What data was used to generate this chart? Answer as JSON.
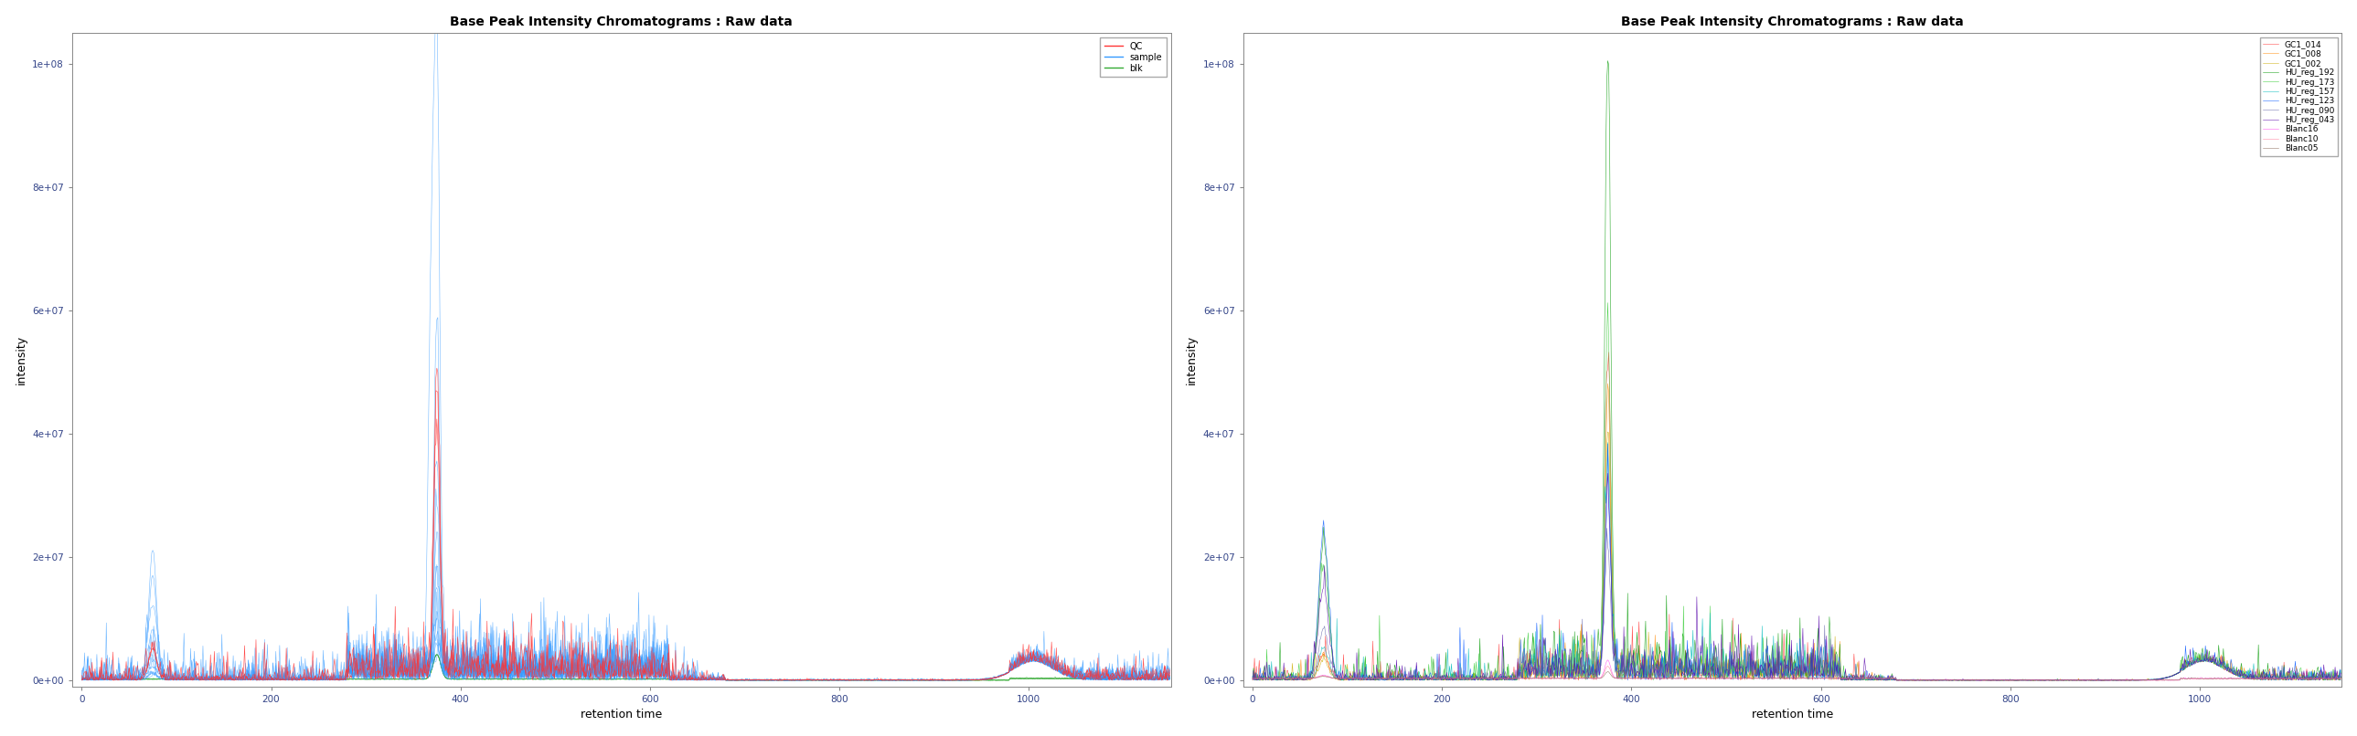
{
  "title": "Base Peak Intensity Chromatograms : Raw data",
  "xlabel": "retention time",
  "ylabel": "intensity",
  "xlim": [
    -10,
    1150
  ],
  "ylim": [
    -1000000.0,
    105000000.0
  ],
  "yticks": [
    0,
    20000000.0,
    40000000.0,
    60000000.0,
    80000000.0,
    100000000.0
  ],
  "ytick_labels": [
    "0e+00",
    "2e+07",
    "4e+07",
    "6e+07",
    "8e+07",
    "1e+08"
  ],
  "xticks": [
    0,
    200,
    400,
    600,
    800,
    1000
  ],
  "plot1_colors": {
    "QC": "#FF3333",
    "sample": "#3399FF",
    "blk": "#33AA33"
  },
  "plot2_colors": {
    "GC1_014": "#FF3333",
    "GC1_008": "#FF8800",
    "GC1_002": "#CCAA00",
    "HU_reg_192": "#009900",
    "HU_reg_173": "#33CC33",
    "HU_reg_157": "#00BBBB",
    "HU_reg_123": "#0055FF",
    "HU_reg_090": "#6666AA",
    "HU_reg_043": "#5500AA",
    "Blanc16": "#FF44EE",
    "Blanc10": "#FF7799",
    "Blanc05": "#886655"
  },
  "background_color": "#FFFFFF",
  "line_width": 0.4,
  "font_size": 9,
  "title_font_size": 10
}
